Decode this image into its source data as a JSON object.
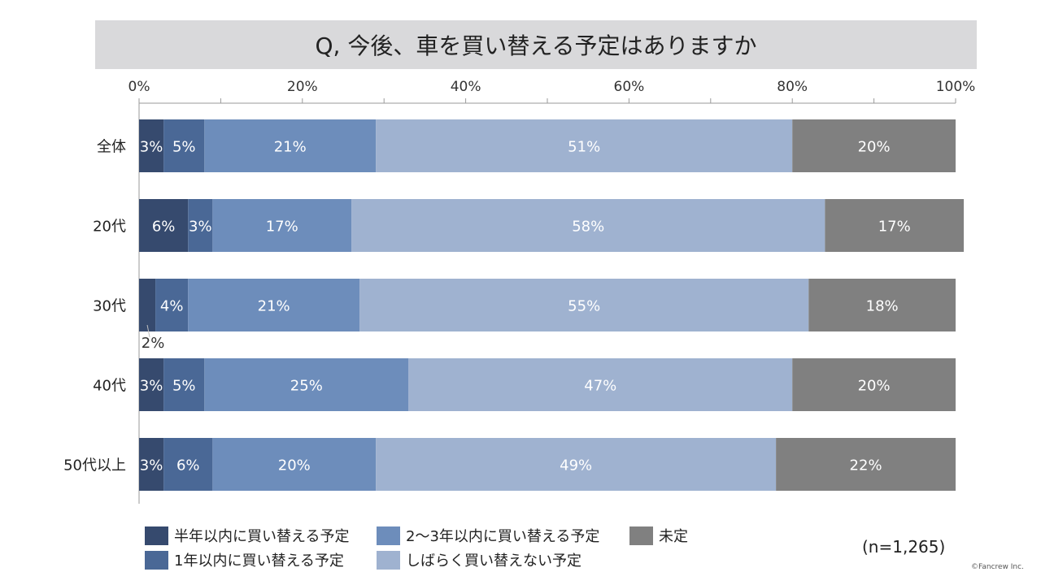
{
  "title": "Q, 今後、車を買い替える予定はありますか",
  "sample_note": "(n=1,265)",
  "copyright": "©Fancrew Inc.",
  "colors": [
    "#364a6e",
    "#4a6896",
    "#6d8dbb",
    "#9fb2d0",
    "#808080"
  ],
  "legend": [
    {
      "label": "半年以内に買い替える予定",
      "color": "#364a6e"
    },
    {
      "label": "1年以内に買い替える予定",
      "color": "#4a6896"
    },
    {
      "label": "2～3年以内に買い替える予定",
      "color": "#6d8dbb"
    },
    {
      "label": "しばらく買い替えない予定",
      "color": "#9fb2d0"
    },
    {
      "label": "未定",
      "color": "#808080"
    }
  ],
  "chart_data": {
    "type": "bar",
    "orientation": "horizontal-stacked-100",
    "title": "Q, 今後、車を買い替える予定はありますか",
    "categories": [
      "全体",
      "20代",
      "30代",
      "40代",
      "50代以上"
    ],
    "x_ticks": [
      "0%",
      "20%",
      "40%",
      "60%",
      "80%",
      "100%"
    ],
    "xlim": [
      0,
      100
    ],
    "series": [
      {
        "name": "半年以内に買い替える予定",
        "values": [
          3,
          6,
          2,
          3,
          3
        ],
        "labels": [
          "3%",
          "6%",
          "2%",
          "3%",
          "3%"
        ]
      },
      {
        "name": "1年以内に買い替える予定",
        "values": [
          5,
          3,
          4,
          5,
          6
        ],
        "labels": [
          "5%",
          "3%",
          "4%",
          "5%",
          "6%"
        ]
      },
      {
        "name": "2～3年以内に買い替える予定",
        "values": [
          21,
          17,
          21,
          25,
          20
        ],
        "labels": [
          "21%",
          "17%",
          "21%",
          "25%",
          "20%"
        ]
      },
      {
        "name": "しばらく買い替えない予定",
        "values": [
          51,
          58,
          55,
          47,
          49
        ],
        "labels": [
          "51%",
          "58%",
          "55%",
          "47%",
          "49%"
        ]
      },
      {
        "name": "未定",
        "values": [
          20,
          17,
          18,
          20,
          22
        ],
        "labels": [
          "20%",
          "17%",
          "18%",
          "20%",
          "22%"
        ]
      }
    ],
    "legend_position": "bottom"
  }
}
